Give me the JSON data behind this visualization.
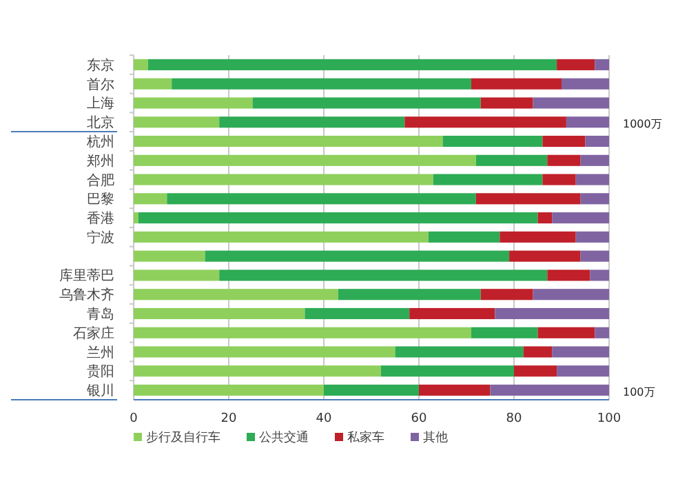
{
  "chart_data": {
    "type": "bar",
    "orientation": "horizontal",
    "stacked": true,
    "categories": [
      "东京",
      "首尔",
      "上海",
      "北京",
      "杭州",
      "郑州",
      "合肥",
      "巴黎",
      "香港",
      "宁波",
      null,
      "库里蒂巴",
      "乌鲁木齐",
      "青岛",
      "石家庄",
      "兰州",
      "贵阳",
      "银川"
    ],
    "series": [
      {
        "name": "步行及自行车",
        "color": "#8fd05c",
        "values": [
          3,
          8,
          25,
          18,
          65,
          72,
          63,
          7,
          1,
          62,
          15,
          18,
          43,
          36,
          71,
          55,
          52,
          40
        ]
      },
      {
        "name": "公共交通",
        "color": "#2eab55",
        "values": [
          86,
          63,
          48,
          39,
          21,
          15,
          23,
          65,
          84,
          15,
          64,
          69,
          30,
          22,
          14,
          27,
          28,
          20
        ]
      },
      {
        "name": "私家车",
        "color": "#c0202a",
        "values": [
          8,
          19,
          11,
          34,
          9,
          7,
          7,
          22,
          3,
          16,
          15,
          9,
          11,
          18,
          12,
          6,
          9,
          15
        ]
      },
      {
        "name": "其他",
        "color": "#8064a2",
        "values": [
          3,
          10,
          16,
          9,
          5,
          6,
          7,
          6,
          12,
          7,
          6,
          4,
          16,
          24,
          3,
          12,
          11,
          25
        ]
      }
    ],
    "xlim": [
      0,
      100
    ],
    "xticks": [
      0,
      20,
      40,
      60,
      80,
      100
    ],
    "grid": "x",
    "legend": "bottom",
    "annotations": [
      "1000万",
      "100万"
    ]
  }
}
